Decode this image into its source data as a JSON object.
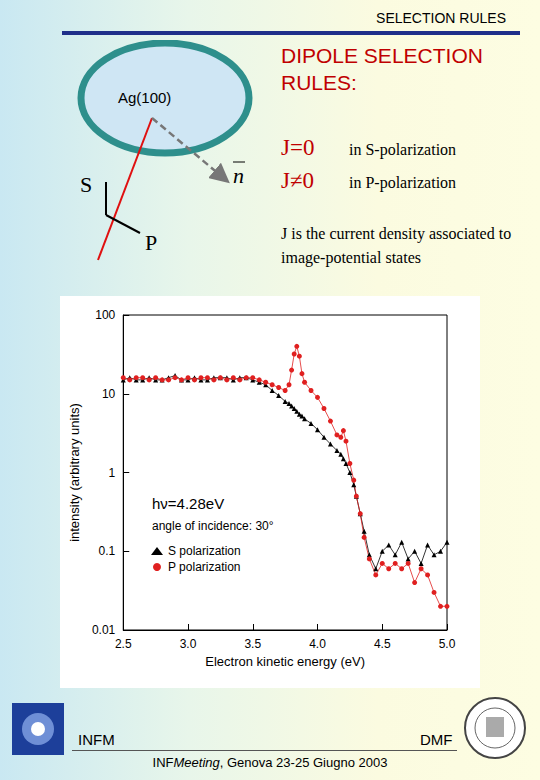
{
  "header": {
    "title": "SELECTION RULES"
  },
  "diagram": {
    "surface": "Ag(100)",
    "normal": "n",
    "s_label": "S",
    "p_label": "P"
  },
  "rules": {
    "title": "DIPOLE SELECTION RULES:",
    "items": [
      {
        "condition": "J=0",
        "polarization": "in S-polarization"
      },
      {
        "condition": "J≠0",
        "polarization": "in P-polarization"
      }
    ],
    "note": "J is the current density associated to image-potential states"
  },
  "chart_data": {
    "type": "line",
    "x_label": "Electron kinetic energy (eV)",
    "y_label": "intensity (arbitrary units)",
    "annotations": [
      "hν=4.28eV",
      "angle of incidence: 30°"
    ],
    "x": [
      2.5,
      2.55,
      2.6,
      2.65,
      2.7,
      2.75,
      2.8,
      2.85,
      2.9,
      2.95,
      3.0,
      3.05,
      3.1,
      3.15,
      3.2,
      3.25,
      3.3,
      3.35,
      3.4,
      3.45,
      3.5,
      3.55,
      3.6,
      3.65,
      3.7,
      3.75,
      3.78,
      3.8,
      3.82,
      3.84,
      3.86,
      3.88,
      3.9,
      3.95,
      4.0,
      4.05,
      4.1,
      4.15,
      4.18,
      4.2,
      4.22,
      4.25,
      4.28,
      4.3,
      4.33,
      4.36,
      4.4,
      4.45,
      4.5,
      4.55,
      4.6,
      4.65,
      4.7,
      4.75,
      4.8,
      4.85,
      4.9,
      4.95,
      5.0
    ],
    "series": [
      {
        "name": "S polarization",
        "color": "#000000",
        "marker": "triangle",
        "values": [
          15,
          16,
          15,
          15,
          16,
          15,
          15,
          16,
          17,
          15,
          15,
          16,
          15,
          15,
          16,
          16,
          16,
          15,
          16,
          16,
          15,
          14,
          13,
          11,
          9.5,
          8,
          7.5,
          7,
          6.5,
          6,
          5.5,
          5.2,
          4.8,
          4.2,
          3.5,
          2.8,
          2.3,
          1.9,
          1.7,
          1.5,
          1.3,
          1.0,
          0.7,
          0.5,
          0.3,
          0.18,
          0.09,
          0.06,
          0.1,
          0.12,
          0.09,
          0.13,
          0.08,
          0.1,
          0.07,
          0.12,
          0.09,
          0.1,
          0.13
        ]
      },
      {
        "name": "P polarization",
        "color": "#e02020",
        "marker": "circle",
        "values": [
          16,
          15,
          16,
          16,
          15,
          16,
          15,
          15,
          16,
          15,
          16,
          15,
          16,
          16,
          15,
          16,
          15,
          16,
          15,
          16,
          16,
          15,
          14,
          13,
          12,
          11,
          13,
          20,
          32,
          40,
          30,
          18,
          14,
          11,
          9,
          6.5,
          4.5,
          3,
          2.8,
          3.4,
          2.5,
          1.3,
          0.8,
          0.5,
          0.3,
          0.15,
          0.08,
          0.05,
          0.07,
          0.06,
          0.07,
          0.06,
          0.07,
          0.04,
          0.06,
          0.05,
          0.03,
          0.02,
          0.02
        ]
      }
    ],
    "xlim": [
      2.5,
      5.0
    ],
    "xticks": [
      2.5,
      {
        "value": 3,
        "label": "3.0"
      },
      3.5,
      {
        "value": 4,
        "label": "4.0"
      },
      4.5,
      {
        "value": 5,
        "label": "5.0"
      }
    ],
    "ylim": [
      0.01,
      100
    ],
    "yticks": [
      0.01,
      0.1,
      1,
      10,
      100
    ],
    "log": "y",
    "grid": false,
    "legend": "lower left"
  },
  "footer": {
    "left": "INFM",
    "right": "DMF",
    "caption": {
      "prefix": "INF",
      "italic": "Meeting",
      "rest": ", Genova 23-25 Giugno 2003"
    }
  }
}
